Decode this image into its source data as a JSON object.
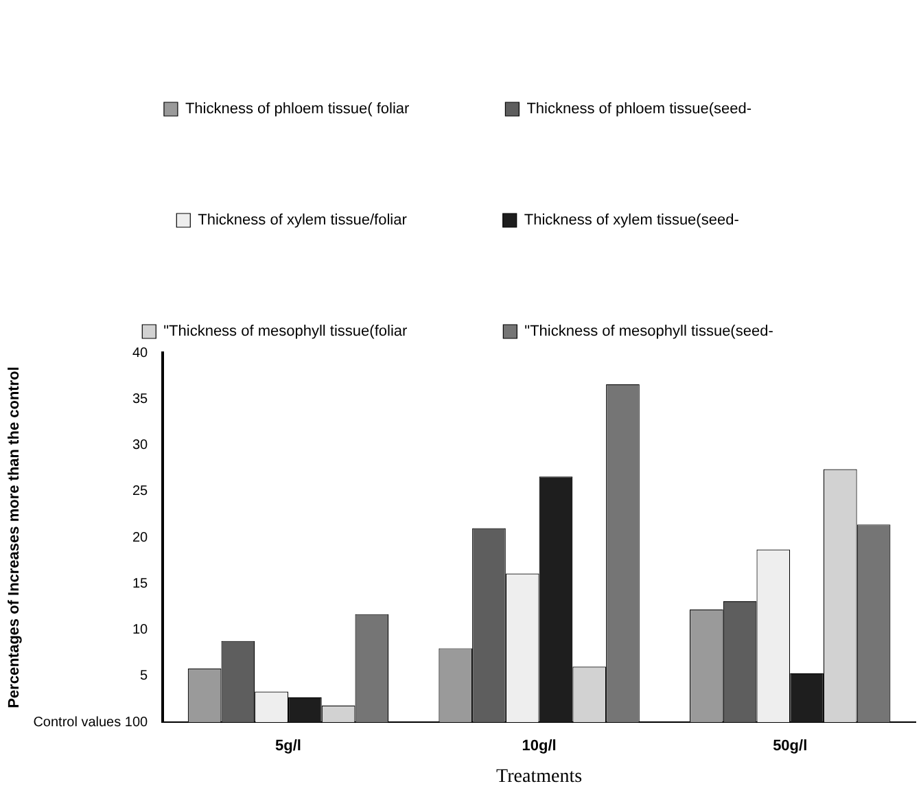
{
  "chart_data": {
    "type": "bar",
    "xlabel": "Treatments",
    "ylabel": "Percentages of Increases more than the control",
    "categories": [
      "5g/l",
      "10g/l",
      "50g/l"
    ],
    "series": [
      {
        "name": "Thickness of phloem tissue( foliar",
        "color": "#9a9a9a",
        "values": [
          5.8,
          8,
          12.2
        ]
      },
      {
        "name": "Thickness of phloem tissue(seed-",
        "color": "#5e5e5e",
        "values": [
          8.8,
          21,
          13.1
        ]
      },
      {
        "name": "Thickness of xylem tissue/foliar",
        "color": "#eeeeee",
        "values": [
          3.3,
          16.1,
          18.7
        ]
      },
      {
        "name": "Thickness of xylem tissue(seed-",
        "color": "#1e1e1e",
        "values": [
          2.7,
          26.6,
          5.3
        ]
      },
      {
        "name": "\"Thickness of mesophyll tissue(foliar",
        "color": "#d2d2d2",
        "values": [
          1.8,
          6,
          27.4
        ]
      },
      {
        "name": "\"Thickness of mesophyll tissue(seed-",
        "color": "#757575",
        "values": [
          11.7,
          36.6,
          21.4
        ]
      }
    ],
    "ylim": [
      0,
      40
    ],
    "yticks": [
      {
        "value": 0,
        "label": "Control values 100"
      },
      5,
      10,
      15,
      20,
      25,
      30,
      35,
      40
    ],
    "grid": false,
    "legend": "top"
  }
}
